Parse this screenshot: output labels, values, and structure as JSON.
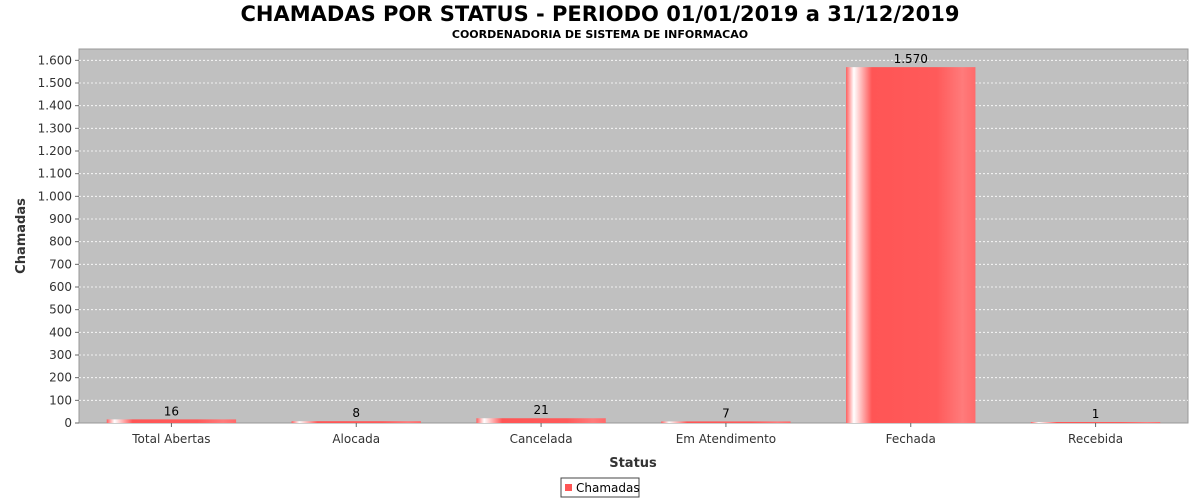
{
  "chart_data": {
    "type": "bar",
    "title": "CHAMADAS POR STATUS - PERIODO 01/01/2019 a 31/12/2019",
    "subtitle": "COORDENADORIA DE SISTEMA DE INFORMACAO",
    "xlabel": "Status",
    "ylabel": "Chamadas",
    "categories": [
      "Total Abertas",
      "Alocada",
      "Cancelada",
      "Em Atendimento",
      "Fechada",
      "Recebida"
    ],
    "series": [
      {
        "name": "Chamadas",
        "values": [
          16,
          8,
          21,
          7,
          1570,
          1
        ],
        "labels": [
          "16",
          "8",
          "21",
          "7",
          "1.570",
          "1"
        ]
      }
    ],
    "ylim": [
      0,
      1650
    ],
    "yticks": [
      0,
      100,
      200,
      300,
      400,
      500,
      600,
      700,
      800,
      900,
      1000,
      1100,
      1200,
      1300,
      1400,
      1500,
      1600
    ],
    "ytick_labels": [
      "0",
      "100",
      "200",
      "300",
      "400",
      "500",
      "600",
      "700",
      "800",
      "900",
      "1.000",
      "1.100",
      "1.200",
      "1.300",
      "1.400",
      "1.500",
      "1.600"
    ],
    "grid": true,
    "legend_position": "bottom-center",
    "colors": {
      "bar": "#ff5555",
      "plot_background": "#c0c0c0",
      "grid": "#ffffff"
    }
  }
}
